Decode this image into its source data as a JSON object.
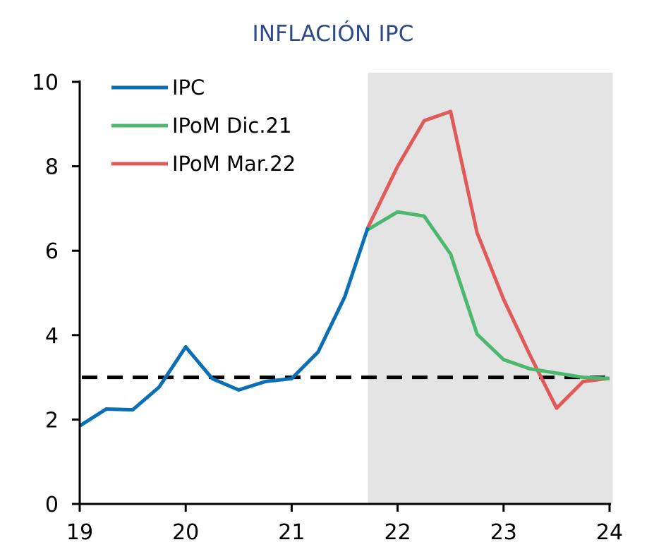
{
  "chart_data": {
    "type": "line",
    "title": "INFLACIÓN IPC",
    "xlabel": "",
    "ylabel": "",
    "xlim": [
      19,
      24
    ],
    "ylim": [
      0,
      10
    ],
    "x_ticks": [
      "19",
      "20",
      "21",
      "22",
      "23",
      "24"
    ],
    "y_ticks": [
      "0",
      "2",
      "4",
      "6",
      "8",
      "10"
    ],
    "grid": false,
    "legend_position": "top-left",
    "projection_shading": {
      "from": 21.72,
      "to": 24.03,
      "color": "#e4e4e4"
    },
    "reference_line": {
      "y": 3.0,
      "style": "dashed",
      "color": "#000000"
    },
    "series": [
      {
        "name": "IPC",
        "color": "#0a6fb5",
        "x": [
          19.0,
          19.25,
          19.5,
          19.75,
          20.0,
          20.25,
          20.5,
          20.75,
          21.0,
          21.25,
          21.5,
          21.72
        ],
        "y": [
          1.85,
          2.25,
          2.23,
          2.77,
          3.72,
          2.97,
          2.7,
          2.9,
          2.97,
          3.6,
          4.9,
          6.55
        ]
      },
      {
        "name": "IPoM Dic.21",
        "color": "#4bb86d",
        "x": [
          21.72,
          22.0,
          22.25,
          22.5,
          22.75,
          23.0,
          23.25,
          23.5,
          23.75,
          24.0
        ],
        "y": [
          6.5,
          6.92,
          6.82,
          5.92,
          4.02,
          3.42,
          3.2,
          3.1,
          3.0,
          2.97
        ]
      },
      {
        "name": "IPoM Mar.22",
        "color": "#e15a5a",
        "x": [
          21.72,
          22.0,
          22.25,
          22.5,
          22.75,
          23.0,
          23.25,
          23.5,
          23.75,
          24.0
        ],
        "y": [
          6.55,
          8.0,
          9.08,
          9.3,
          6.42,
          4.85,
          3.52,
          2.27,
          2.9,
          2.98
        ]
      }
    ]
  }
}
